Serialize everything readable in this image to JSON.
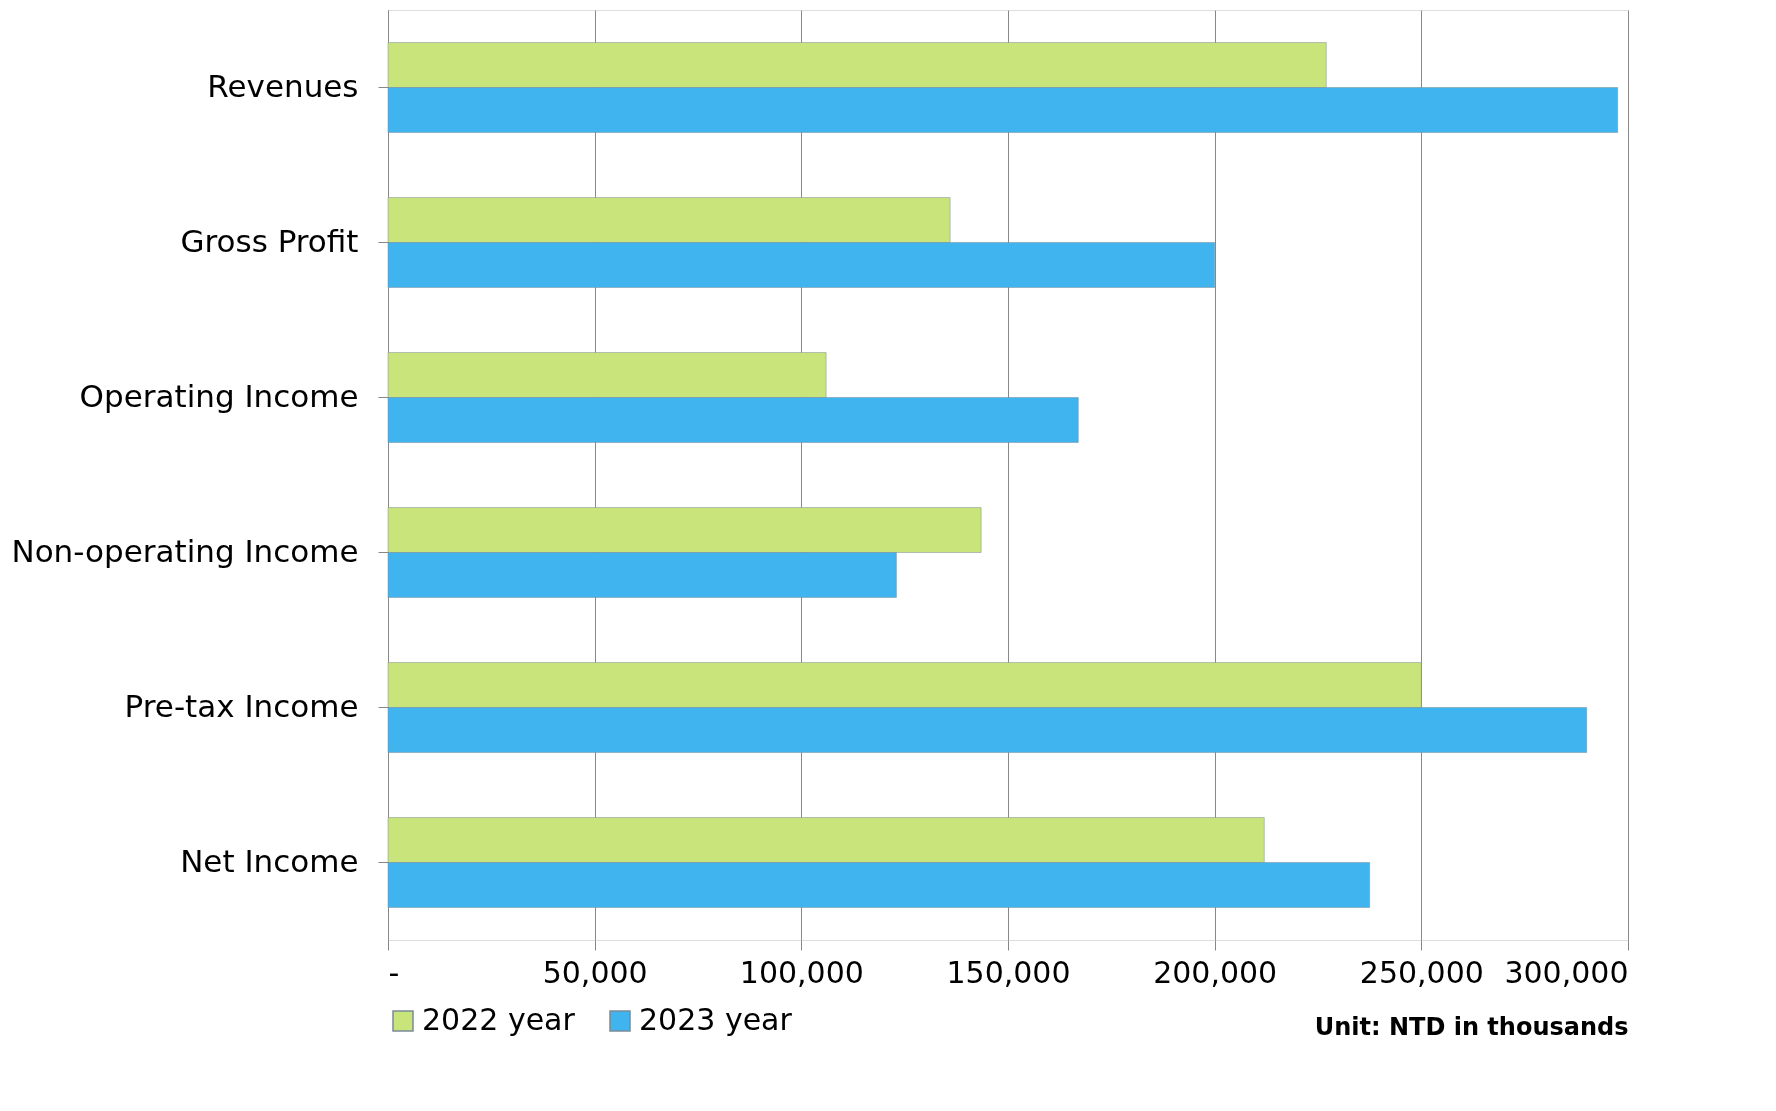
{
  "chart_data": {
    "type": "bar",
    "orientation": "horizontal",
    "categories": [
      "Revenues",
      "Gross Profit",
      "Operating Income",
      "Non-operating Income",
      "Pre-tax Income",
      "Net Income"
    ],
    "series": [
      {
        "name": "2022 year",
        "color": "#c9e47b",
        "values": [
          227000,
          136000,
          106000,
          143500,
          250000,
          212000
        ]
      },
      {
        "name": "2023 year",
        "color": "#3fb4ee",
        "values": [
          297500,
          200000,
          167000,
          123000,
          290000,
          237500
        ]
      }
    ],
    "xlim": [
      0,
      300000
    ],
    "xticks": [
      {
        "value": 0,
        "label": "-"
      },
      {
        "value": 50000,
        "label": "50,000"
      },
      {
        "value": 100000,
        "label": "100,000"
      },
      {
        "value": 150000,
        "label": "150,000"
      },
      {
        "value": 200000,
        "label": "200,000"
      },
      {
        "value": 250000,
        "label": "250,000"
      },
      {
        "value": 300000,
        "label": "300,000"
      }
    ],
    "grid": "x",
    "legend": "bottom",
    "annotations": [
      "Unit: NTD in thousands"
    ]
  }
}
